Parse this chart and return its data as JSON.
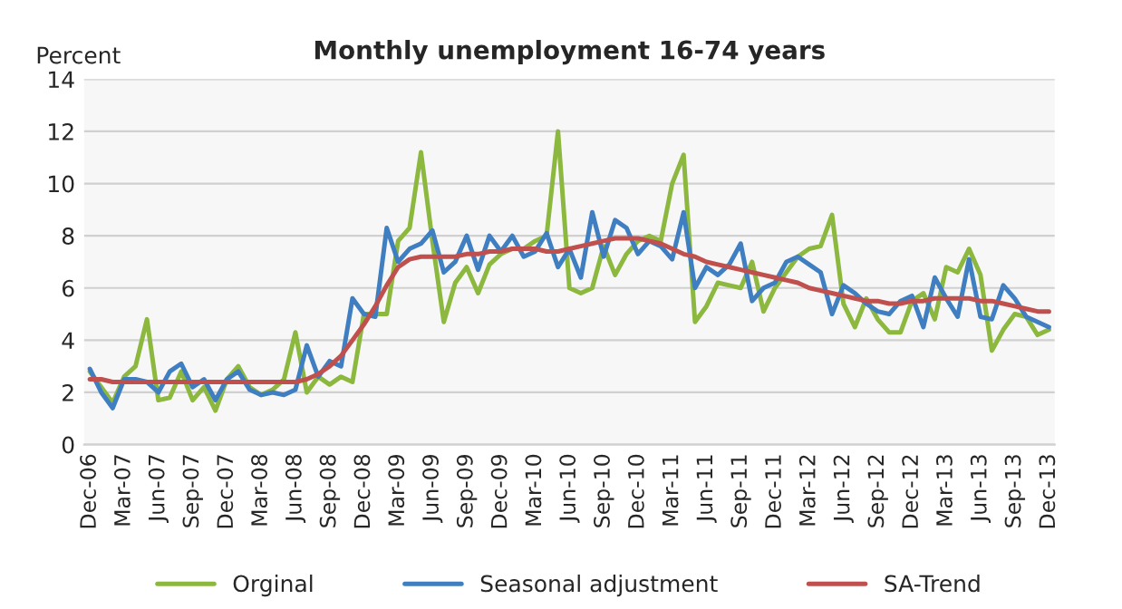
{
  "chart_data": {
    "type": "line",
    "title": "Monthly unemployment 16-74 years",
    "ylabel": "Percent",
    "categories": [
      "Dec-06",
      null,
      null,
      "Mar-07",
      null,
      null,
      "Jun-07",
      null,
      null,
      "Sep-07",
      null,
      null,
      "Dec-07",
      null,
      null,
      "Mar-08",
      null,
      null,
      "Jun-08",
      null,
      null,
      "Sep-08",
      null,
      null,
      "Dec-08",
      null,
      null,
      "Mar-09",
      null,
      null,
      "Jun-09",
      null,
      null,
      "Sep-09",
      null,
      null,
      "Dec-09",
      null,
      null,
      "Mar-10",
      null,
      null,
      "Jun-10",
      null,
      null,
      "Sep-10",
      null,
      null,
      "Dec-10",
      null,
      null,
      "Mar-11",
      null,
      null,
      "Jun-11",
      null,
      null,
      "Sep-11",
      null,
      null,
      "Dec-11",
      null,
      null,
      "Mar-12",
      null,
      null,
      "Jun-12",
      null,
      null,
      "Sep-12",
      null,
      null,
      "Dec-12",
      null,
      null,
      "Mar-13",
      null,
      null,
      "Jun-13",
      null,
      null,
      "Sep-13",
      null,
      null,
      "Dec-13"
    ],
    "series": [
      {
        "name": "Orginal",
        "color": "#8db83f",
        "values": [
          2.8,
          2.2,
          1.6,
          2.6,
          3.0,
          4.8,
          1.7,
          1.8,
          2.8,
          1.7,
          2.2,
          1.3,
          2.5,
          3.0,
          2.2,
          1.9,
          2.1,
          2.5,
          4.3,
          2.0,
          2.6,
          2.3,
          2.6,
          2.4,
          5.0,
          5.0,
          5.0,
          7.8,
          8.3,
          11.2,
          7.8,
          4.7,
          6.2,
          6.8,
          5.8,
          6.9,
          7.3,
          7.5,
          7.5,
          7.8,
          8.0,
          12.0,
          6.0,
          5.8,
          6.0,
          7.6,
          6.5,
          7.3,
          7.8,
          8.0,
          7.8,
          10.0,
          11.1,
          4.7,
          5.3,
          6.2,
          6.1,
          6.0,
          7.0,
          5.1,
          6.0,
          6.6,
          7.2,
          7.5,
          7.6,
          8.8,
          5.4,
          4.5,
          5.6,
          4.8,
          4.3,
          4.3,
          5.5,
          5.8,
          4.8,
          6.8,
          6.6,
          7.5,
          6.5,
          3.6,
          4.4,
          5.0,
          4.9,
          4.2,
          4.4
        ]
      },
      {
        "name": "Seasonal adjustment",
        "color": "#3f7fc1",
        "values": [
          2.9,
          2.0,
          1.4,
          2.5,
          2.5,
          2.4,
          2.0,
          2.8,
          3.1,
          2.2,
          2.5,
          1.7,
          2.5,
          2.8,
          2.1,
          1.9,
          2.0,
          1.9,
          2.1,
          3.8,
          2.6,
          3.2,
          3.0,
          5.6,
          5.0,
          4.9,
          8.3,
          7.0,
          7.5,
          7.7,
          8.2,
          6.6,
          7.0,
          8.0,
          6.7,
          8.0,
          7.4,
          8.0,
          7.2,
          7.4,
          8.1,
          6.8,
          7.5,
          6.4,
          8.9,
          7.2,
          8.6,
          8.3,
          7.3,
          7.8,
          7.6,
          7.1,
          8.9,
          6.0,
          6.8,
          6.5,
          6.9,
          7.7,
          5.5,
          6.0,
          6.2,
          7.0,
          7.2,
          6.9,
          6.6,
          5.0,
          6.1,
          5.8,
          5.4,
          5.1,
          5.0,
          5.5,
          5.7,
          4.5,
          6.4,
          5.6,
          4.9,
          7.1,
          4.9,
          4.8,
          6.1,
          5.6,
          4.9,
          4.7,
          4.5
        ]
      },
      {
        "name": "SA-Trend",
        "color": "#c0504d",
        "values": [
          2.5,
          2.5,
          2.4,
          2.4,
          2.4,
          2.4,
          2.4,
          2.4,
          2.4,
          2.4,
          2.4,
          2.4,
          2.4,
          2.4,
          2.4,
          2.4,
          2.4,
          2.4,
          2.4,
          2.5,
          2.7,
          3.0,
          3.4,
          4.0,
          4.6,
          5.3,
          6.1,
          6.8,
          7.1,
          7.2,
          7.2,
          7.2,
          7.2,
          7.3,
          7.3,
          7.4,
          7.4,
          7.5,
          7.5,
          7.5,
          7.4,
          7.4,
          7.5,
          7.6,
          7.7,
          7.8,
          7.9,
          7.9,
          7.9,
          7.8,
          7.7,
          7.5,
          7.3,
          7.2,
          7.0,
          6.9,
          6.8,
          6.7,
          6.6,
          6.5,
          6.4,
          6.3,
          6.2,
          6.0,
          5.9,
          5.8,
          5.7,
          5.6,
          5.5,
          5.5,
          5.4,
          5.4,
          5.5,
          5.5,
          5.6,
          5.6,
          5.6,
          5.6,
          5.5,
          5.5,
          5.4,
          5.3,
          5.2,
          5.1,
          5.1
        ]
      }
    ],
    "ylim": [
      0,
      14
    ],
    "yticks": [
      0,
      2,
      4,
      6,
      8,
      10,
      12,
      14
    ],
    "grid": "y",
    "legend": "bottom",
    "marker": "none",
    "line_style": "solid"
  }
}
